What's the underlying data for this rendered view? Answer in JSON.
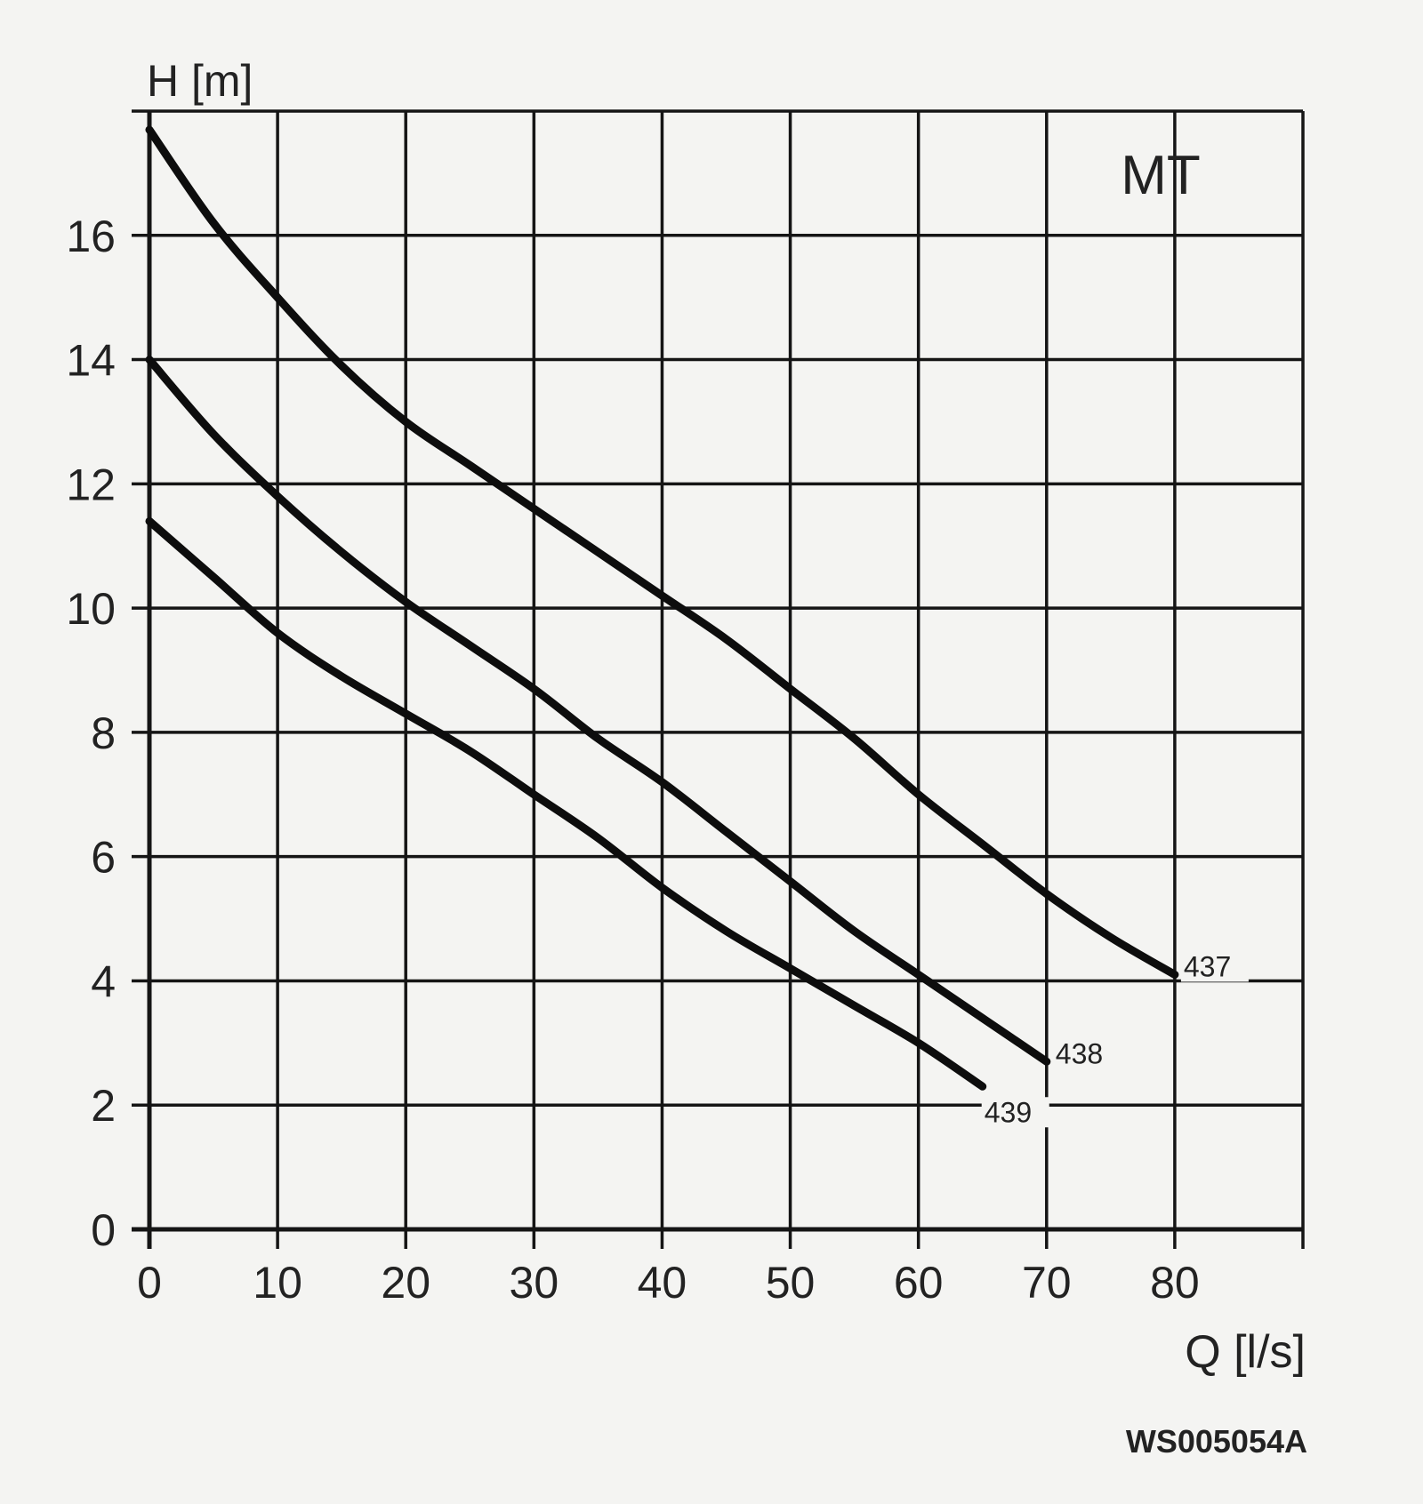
{
  "chart_data": {
    "type": "line",
    "title": "MT",
    "ylabel": "H [m]",
    "xlabel": "Q [l/s]",
    "figure_code": "WS005054A",
    "xlim": [
      0,
      90
    ],
    "ylim": [
      0,
      18
    ],
    "x_ticks": [
      0,
      10,
      20,
      30,
      40,
      50,
      60,
      70,
      80
    ],
    "y_ticks": [
      0,
      2,
      4,
      6,
      8,
      10,
      12,
      14,
      16
    ],
    "grid": true,
    "series": [
      {
        "name": "437",
        "x": [
          0,
          5,
          10,
          15,
          20,
          25,
          30,
          35,
          40,
          45,
          50,
          55,
          60,
          65,
          70,
          75,
          80
        ],
        "y": [
          17.7,
          16.2,
          15.0,
          13.9,
          13.0,
          12.3,
          11.6,
          10.9,
          10.2,
          9.5,
          8.7,
          7.9,
          7.0,
          6.2,
          5.4,
          4.7,
          4.1
        ]
      },
      {
        "name": "438",
        "x": [
          0,
          5,
          10,
          15,
          20,
          25,
          30,
          35,
          40,
          45,
          50,
          55,
          60,
          65,
          70
        ],
        "y": [
          14.0,
          12.8,
          11.8,
          10.9,
          10.1,
          9.4,
          8.7,
          7.9,
          7.2,
          6.4,
          5.6,
          4.8,
          4.1,
          3.4,
          2.7
        ]
      },
      {
        "name": "439",
        "x": [
          0,
          5,
          10,
          15,
          20,
          25,
          30,
          35,
          40,
          45,
          50,
          55,
          60,
          65
        ],
        "y": [
          11.4,
          10.5,
          9.6,
          8.9,
          8.3,
          7.7,
          7.0,
          6.3,
          5.5,
          4.8,
          4.2,
          3.6,
          3.0,
          2.3
        ]
      }
    ]
  }
}
